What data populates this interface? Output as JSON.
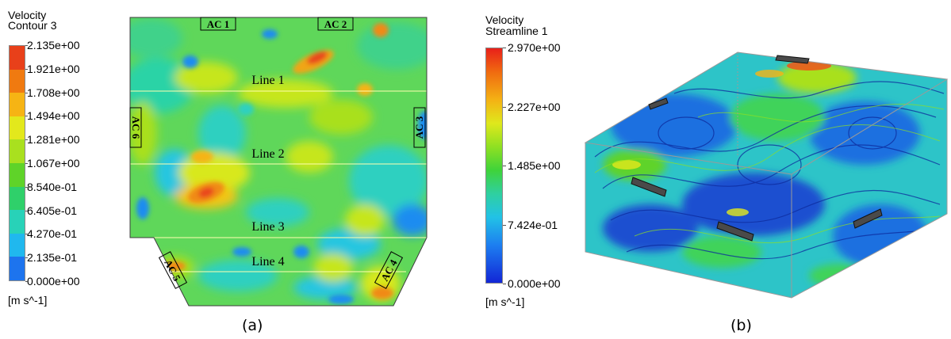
{
  "panel_a": {
    "legend": {
      "title_line1": "Velocity",
      "title_line2": "Contour 3",
      "ticks": [
        "2.135e+00",
        "1.921e+00",
        "1.708e+00",
        "1.494e+00",
        "1.281e+00",
        "1.067e+00",
        "8.540e-01",
        "6.405e-01",
        "4.270e-01",
        "2.135e-01",
        "0.000e+00"
      ],
      "units": "[m s^-1]",
      "colors": [
        "#e8401a",
        "#f07a10",
        "#f6b414",
        "#e3e81c",
        "#a9e01f",
        "#5fd329",
        "#2fd06a",
        "#28d2b8",
        "#20b8ee",
        "#1d74ee",
        "#1327e6"
      ]
    },
    "labels": {
      "ac1": "AC 1",
      "ac2": "AC 2",
      "ac3": "AC 3",
      "ac4": "AC 4",
      "ac5": "AC 5",
      "ac6": "AC 6",
      "line1": "Line 1",
      "line2": "Line 2",
      "line3": "Line 3",
      "line4": "Line 4"
    },
    "caption": "(a)"
  },
  "panel_b": {
    "legend": {
      "title_line1": "Velocity",
      "title_line2": "Streamline 1",
      "ticks": [
        "2.970e+00",
        "2.227e+00",
        "1.485e+00",
        "7.424e-01",
        "0.000e+00"
      ],
      "units": "[m s^-1]"
    },
    "caption": "(b)"
  }
}
